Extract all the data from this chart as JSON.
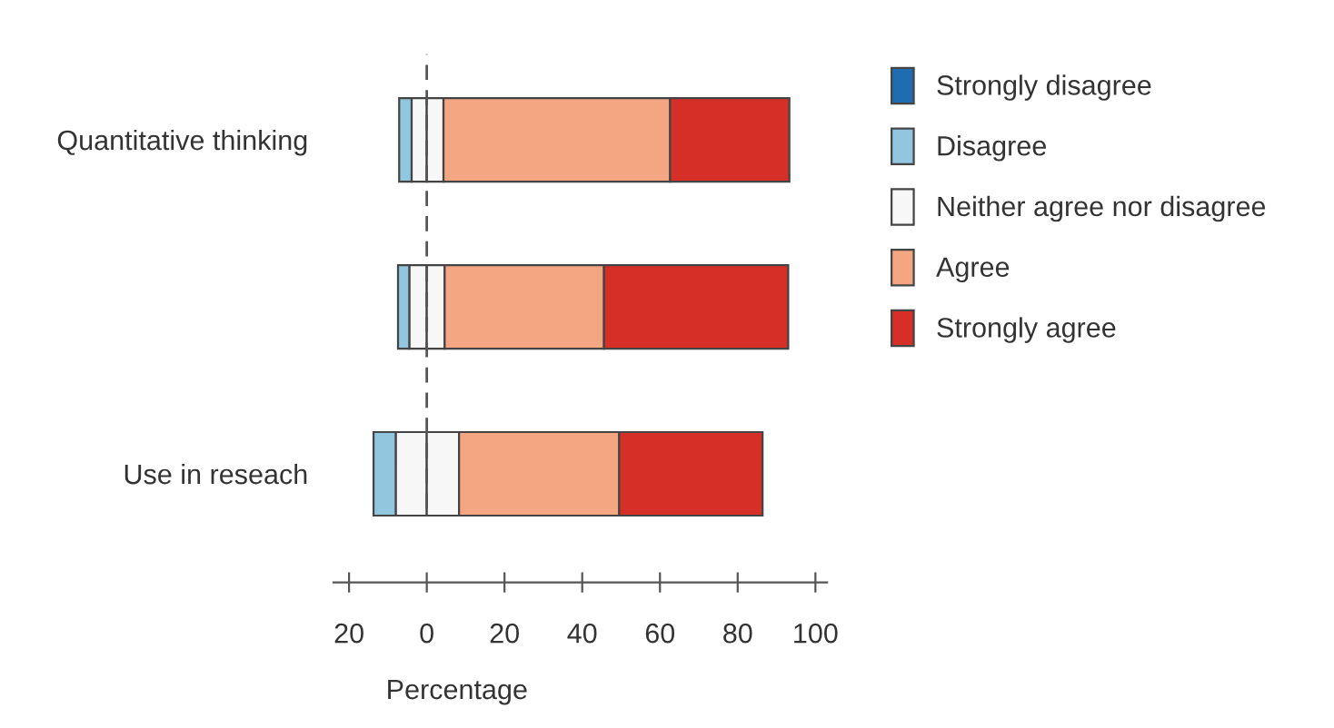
{
  "chart_data": {
    "type": "bar",
    "orientation": "horizontal",
    "stacked": true,
    "categories": [
      "Quantitative thinking",
      null,
      "Use in reseach"
    ],
    "series": [
      {
        "color": "#f7f7f7",
        "values": [
          -3.9,
          -4.5,
          -8.0
        ]
      },
      {
        "name": "Strongly disagree",
        "color": "#1f6db0",
        "values": [
          0,
          0,
          0
        ]
      },
      {
        "name": "Disagree",
        "color": "#92c5de",
        "values": [
          -3.2,
          -2.9,
          -5.7
        ]
      },
      {
        "name": "Neither agree nor disagree",
        "color": "#f7f7f7",
        "values": [
          4.3,
          4.6,
          8.3
        ]
      },
      {
        "name": "Agree",
        "color": "#f4a582",
        "values": [
          58.3,
          41.0,
          41.2
        ]
      },
      {
        "name": "Strongly agree",
        "color": "#d62f27",
        "values": [
          30.7,
          47.4,
          36.9
        ]
      }
    ],
    "xlim": [
      -24,
      103
    ],
    "xticks": [
      {
        "value": -20,
        "label": "20"
      },
      0,
      20,
      40,
      60,
      80,
      100
    ],
    "xlabel": "Percentage",
    "ref_lines": [
      {
        "axis": "x",
        "value": 0,
        "color": "#555555",
        "line_style": "dashed"
      }
    ],
    "legend": "right",
    "grid": false
  }
}
